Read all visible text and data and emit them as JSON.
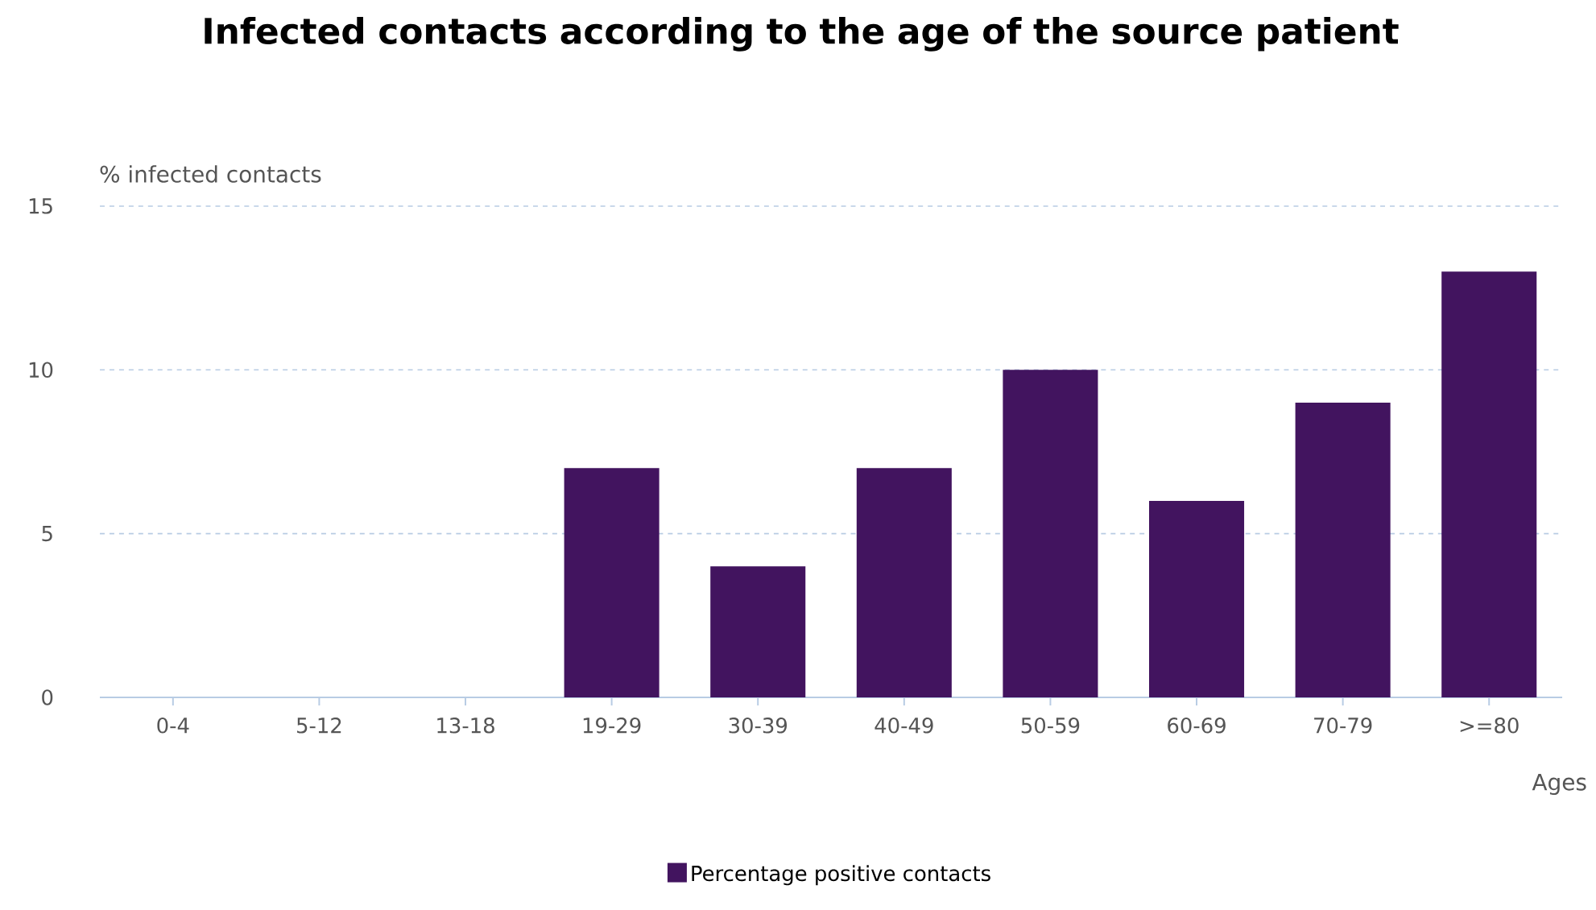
{
  "chart_data": {
    "type": "bar",
    "title": "Infected contacts according to the age of the source patient",
    "xlabel": "Ages",
    "ylabel": "% infected contacts",
    "categories": [
      "0-4",
      "5-12",
      "13-18",
      "19-29",
      "30-39",
      "40-49",
      "50-59",
      "60-69",
      "70-79",
      ">=80"
    ],
    "series": [
      {
        "name": "Percentage positive contacts",
        "color": "#42145f",
        "values": [
          0,
          0,
          0,
          7,
          4,
          7,
          10,
          6,
          9,
          13
        ]
      }
    ],
    "ylim": [
      0,
      15
    ],
    "yticks": [
      0,
      5,
      10,
      15
    ],
    "grid": "y",
    "legend": "bottom"
  }
}
